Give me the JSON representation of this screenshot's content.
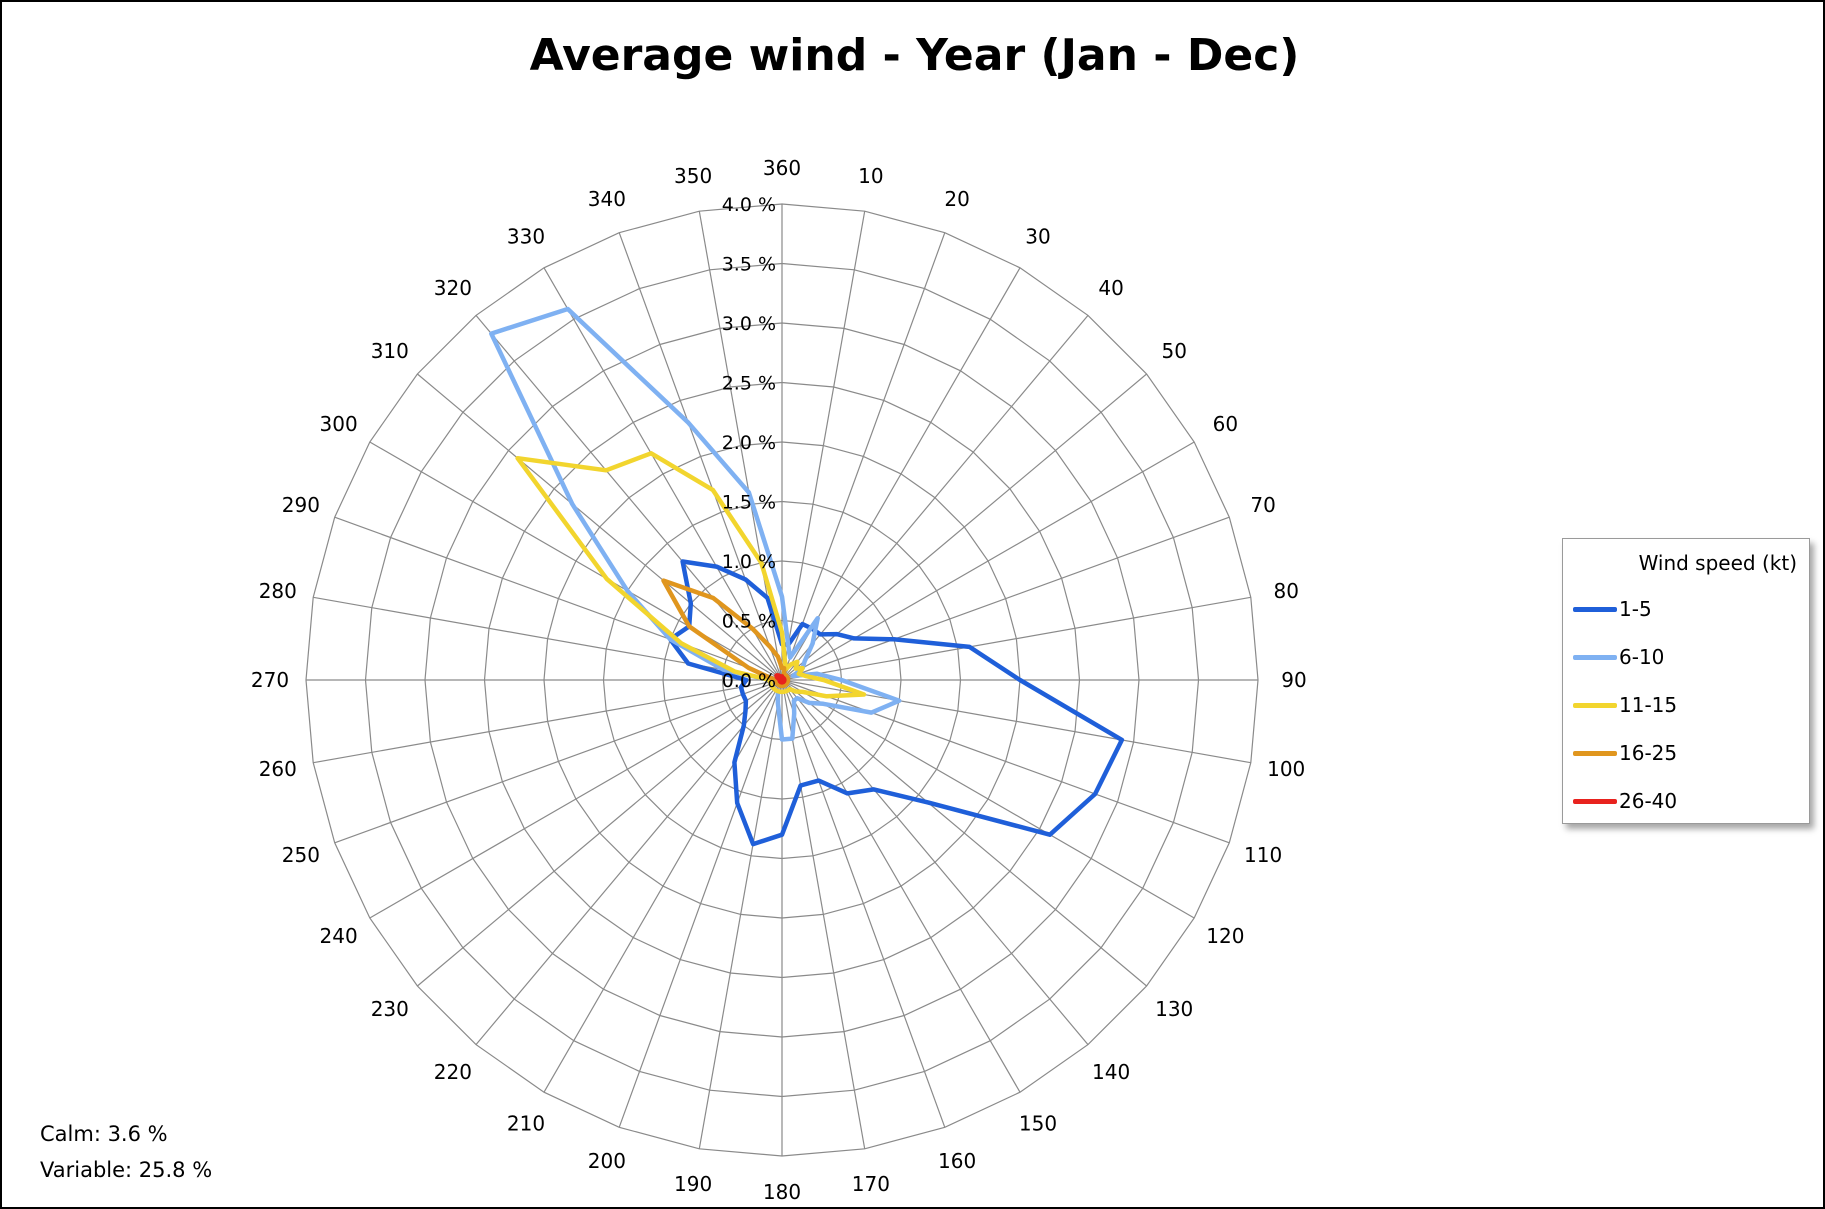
{
  "title": "Average wind - Year (Jan - Dec)",
  "chart_data": {
    "type": "radar",
    "title": "Average wind - Year (Jan - Dec)",
    "directions": [
      360,
      10,
      20,
      30,
      40,
      50,
      60,
      70,
      80,
      90,
      100,
      110,
      120,
      130,
      140,
      150,
      160,
      170,
      180,
      190,
      200,
      210,
      220,
      230,
      240,
      250,
      260,
      270,
      280,
      290,
      300,
      310,
      320,
      330,
      340,
      350
    ],
    "radial_ticks": [
      "0.0 %",
      "0.5 %",
      "1.0 %",
      "1.5 %",
      "2.0 %",
      "2.5 %",
      "3.0 %",
      "3.5 %",
      "4.0 %"
    ],
    "rlim": [
      0,
      4
    ],
    "grid": true,
    "legend_title": "Wind speed (kt)",
    "legend_position": "right",
    "series": [
      {
        "name": "1-5",
        "color": "#1f5fd9",
        "values": [
          0.3,
          0.3,
          0.5,
          0.5,
          0.5,
          0.6,
          0.7,
          1.0,
          1.6,
          2.0,
          2.9,
          2.8,
          2.6,
          1.6,
          1.2,
          1.1,
          0.9,
          0.9,
          1.3,
          1.4,
          1.1,
          0.8,
          0.5,
          0.4,
          0.35,
          0.35,
          0.35,
          0.3,
          0.8,
          1.0,
          0.9,
          1.0,
          1.3,
          1.1,
          0.9,
          0.7
        ]
      },
      {
        "name": "6-10",
        "color": "#7fb1f2",
        "values": [
          0.7,
          0.3,
          0.2,
          0.6,
          0.4,
          0.25,
          0.2,
          0.1,
          0.3,
          0.5,
          1.0,
          0.8,
          0.4,
          0.3,
          0.2,
          0.2,
          0.3,
          0.5,
          0.5,
          0.2,
          0.1,
          0.1,
          0.1,
          0.1,
          0.1,
          0.1,
          0.1,
          0.1,
          0.5,
          1.0,
          1.5,
          2.3,
          3.8,
          3.6,
          2.3,
          1.6
        ]
      },
      {
        "name": "11-15",
        "color": "#f2d52e",
        "values": [
          0.4,
          0.15,
          0.1,
          0.15,
          0.2,
          0.15,
          0.2,
          0.15,
          0.2,
          0.35,
          0.7,
          0.4,
          0.2,
          0.15,
          0.1,
          0.1,
          0.1,
          0.1,
          0.1,
          0.1,
          0.1,
          0.1,
          0.1,
          0.1,
          0.1,
          0.1,
          0.1,
          0.1,
          0.4,
          0.9,
          1.7,
          2.9,
          2.3,
          2.2,
          1.7,
          1.0
        ]
      },
      {
        "name": "16-25",
        "color": "#e0961e",
        "values": [
          0.1,
          0.1,
          0.05,
          0.05,
          0.05,
          0.05,
          0.05,
          0.05,
          0.05,
          0.05,
          0.05,
          0.05,
          0.05,
          0.05,
          0.05,
          0.05,
          0.05,
          0.05,
          0.05,
          0.05,
          0.05,
          0.05,
          0.05,
          0.05,
          0.05,
          0.05,
          0.05,
          0.05,
          0.1,
          0.3,
          0.9,
          1.3,
          0.9,
          0.5,
          0.3,
          0.2
        ]
      },
      {
        "name": "26-40",
        "color": "#e8221e",
        "values": [
          0.03,
          0.02,
          0.02,
          0.02,
          0.02,
          0.02,
          0.02,
          0.02,
          0.02,
          0.02,
          0.02,
          0.02,
          0.02,
          0.02,
          0.02,
          0.02,
          0.02,
          0.02,
          0.02,
          0.02,
          0.02,
          0.02,
          0.02,
          0.02,
          0.02,
          0.02,
          0.02,
          0.02,
          0.02,
          0.03,
          0.05,
          0.06,
          0.05,
          0.04,
          0.03,
          0.03
        ]
      }
    ]
  },
  "notes": {
    "calm": "Calm:  3.6 %",
    "variable": "Variable: 25.8 %"
  }
}
